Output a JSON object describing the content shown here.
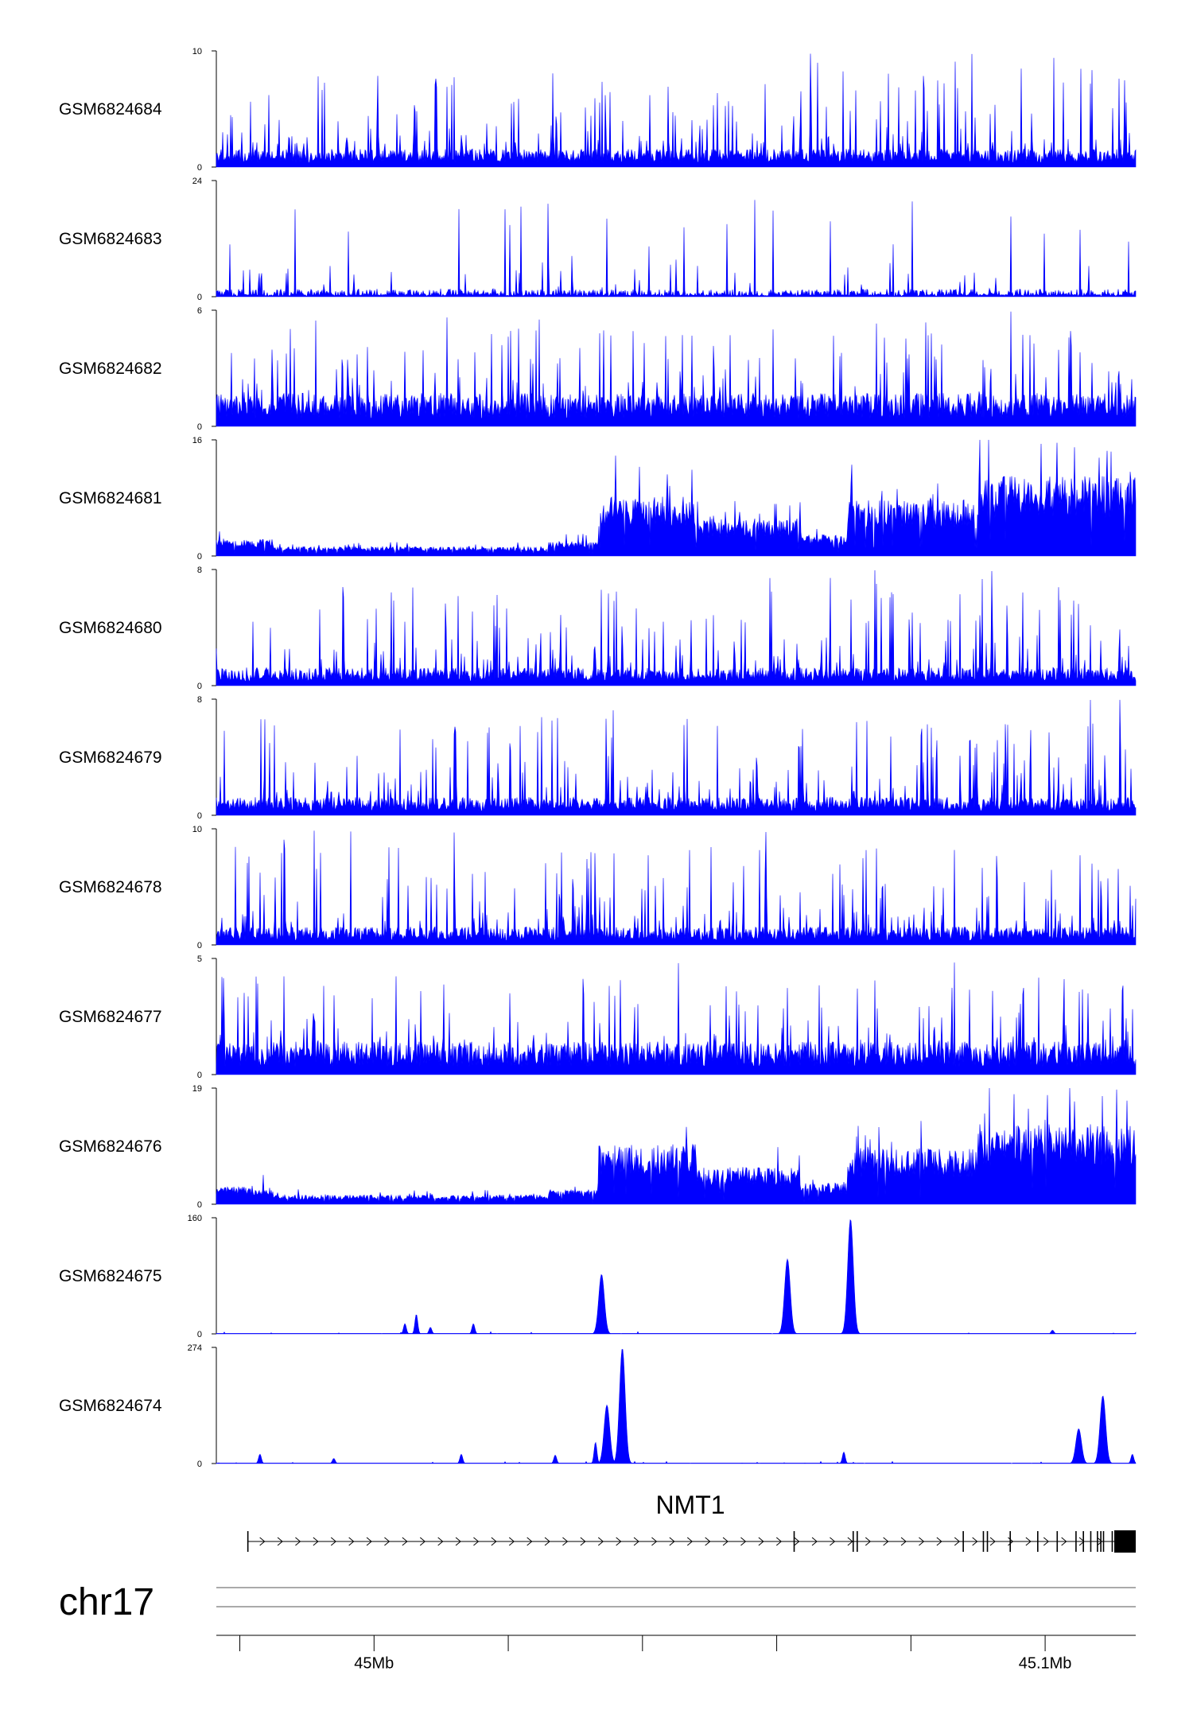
{
  "colors": {
    "signal": "#0000ff",
    "axis": "#000000",
    "gene": "#000000"
  },
  "chart_data": {
    "type": "area",
    "chromosome": "chr17",
    "x_range_mb": [
      44.9765,
      45.1135
    ],
    "x_ticks_mb": [
      44.98,
      45.0,
      45.02,
      45.04,
      45.06,
      45.08,
      45.1
    ],
    "x_tick_labels": [
      {
        "mb": 45.0,
        "label": "45Mb"
      },
      {
        "mb": 45.1,
        "label": "45.1Mb"
      }
    ],
    "tracks": [
      {
        "name": "GSM6824684",
        "ymax": 10,
        "ymin": 0,
        "pattern": "noise"
      },
      {
        "name": "GSM6824683",
        "ymax": 24,
        "ymin": 0,
        "pattern": "sparse"
      },
      {
        "name": "GSM6824682",
        "ymax": 6,
        "ymin": 0,
        "pattern": "dense"
      },
      {
        "name": "GSM6824681",
        "ymax": 16,
        "ymin": 0,
        "pattern": "broad"
      },
      {
        "name": "GSM6824680",
        "ymax": 8,
        "ymin": 0,
        "pattern": "noise"
      },
      {
        "name": "GSM6824679",
        "ymax": 8,
        "ymin": 0,
        "pattern": "noise"
      },
      {
        "name": "GSM6824678",
        "ymax": 10,
        "ymin": 0,
        "pattern": "noise"
      },
      {
        "name": "GSM6824677",
        "ymax": 5,
        "ymin": 0,
        "pattern": "dense"
      },
      {
        "name": "GSM6824676",
        "ymax": 19,
        "ymin": 0,
        "pattern": "broad"
      },
      {
        "name": "GSM6824675",
        "ymax": 160,
        "ymin": 0,
        "pattern": "peaks",
        "peaks": [
          {
            "mb": 45.0046,
            "value": 14
          },
          {
            "mb": 45.0063,
            "value": 27
          },
          {
            "mb": 45.0084,
            "value": 9
          },
          {
            "mb": 45.0148,
            "value": 14
          },
          {
            "mb": 45.0339,
            "value": 82
          },
          {
            "mb": 45.0616,
            "value": 103
          },
          {
            "mb": 45.071,
            "value": 158
          },
          {
            "mb": 45.1011,
            "value": 5
          }
        ]
      },
      {
        "name": "GSM6824674",
        "ymax": 274,
        "ymin": 0,
        "pattern": "peaks",
        "peaks": [
          {
            "mb": 44.983,
            "value": 22
          },
          {
            "mb": 44.994,
            "value": 12
          },
          {
            "mb": 45.013,
            "value": 22
          },
          {
            "mb": 45.027,
            "value": 20
          },
          {
            "mb": 45.033,
            "value": 50
          },
          {
            "mb": 45.0347,
            "value": 138
          },
          {
            "mb": 45.037,
            "value": 272
          },
          {
            "mb": 45.07,
            "value": 27
          },
          {
            "mb": 45.105,
            "value": 82
          },
          {
            "mb": 45.1086,
            "value": 160
          },
          {
            "mb": 45.113,
            "value": 22
          }
        ]
      }
    ],
    "gene": {
      "name": "NMT1",
      "strand": "+",
      "start_mb": 44.9812,
      "end_mb": 45.1135,
      "exons_mb": [
        44.9812,
        45.0626,
        45.0714,
        45.072,
        45.0878,
        45.0908,
        45.0914,
        45.0948,
        45.0989,
        45.1018,
        45.1046,
        45.1057,
        45.1068,
        45.1078,
        45.1083,
        45.1087,
        45.11,
        45.1108,
        45.1113
      ],
      "thick_block_mb": [
        45.1103,
        45.1135
      ]
    }
  }
}
